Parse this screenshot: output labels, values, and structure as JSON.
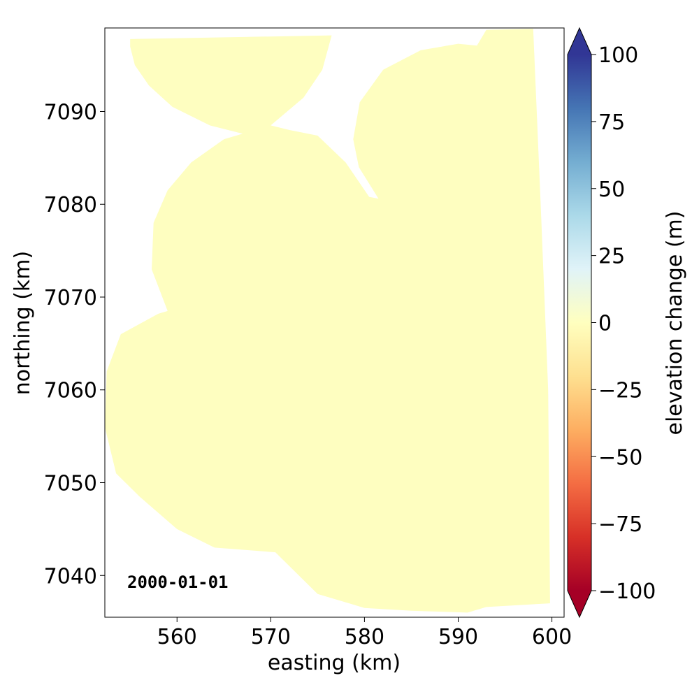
{
  "chart_data": {
    "type": "heatmap",
    "xlabel": "easting (km)",
    "ylabel": "northing (km)",
    "xlim": [
      552.3,
      601.3
    ],
    "ylim": [
      7035.5,
      7099.0
    ],
    "xticks": [
      560,
      570,
      580,
      590,
      600
    ],
    "yticks": [
      7040,
      7050,
      7060,
      7070,
      7080,
      7090
    ],
    "date_label": "2000-01-01",
    "field_value": 0,
    "field_color": "#fefec0",
    "colorbar": {
      "label": "elevation change (m)",
      "range": [
        -100,
        100
      ],
      "ticks": [
        -100,
        -75,
        -50,
        -25,
        0,
        25,
        50,
        75,
        100
      ],
      "tick_labels": [
        "−100",
        "−75",
        "−50",
        "−25",
        "0",
        "25",
        "50",
        "75",
        "100"
      ],
      "colormap": "RdYlBu",
      "extend": "both",
      "stops": [
        "#a50026",
        "#d73027",
        "#f46d43",
        "#fdae61",
        "#fee090",
        "#ffffbf",
        "#e0f3f8",
        "#abd9e9",
        "#74add1",
        "#4575b4",
        "#313695"
      ]
    },
    "coverage_outline": [
      [
        555.0,
        7097.8
      ],
      [
        576.5,
        7098.2
      ],
      [
        575.5,
        7094.5
      ],
      [
        573.5,
        7091.5
      ],
      [
        570.0,
        7088.5
      ],
      [
        572.0,
        7088.0
      ],
      [
        575.0,
        7087.4
      ],
      [
        578.0,
        7084.5
      ],
      [
        580.5,
        7080.8
      ],
      [
        581.5,
        7080.6
      ],
      [
        579.4,
        7084.0
      ],
      [
        578.8,
        7087.0
      ],
      [
        579.5,
        7091.0
      ],
      [
        582.0,
        7094.5
      ],
      [
        586.0,
        7096.6
      ],
      [
        590.0,
        7097.3
      ],
      [
        592.0,
        7097.1
      ],
      [
        593.0,
        7098.8
      ],
      [
        598.0,
        7098.9
      ],
      [
        598.8,
        7080.0
      ],
      [
        599.6,
        7060.0
      ],
      [
        599.8,
        7037.0
      ],
      [
        593.0,
        7036.6
      ],
      [
        591.0,
        7036.0
      ],
      [
        585.0,
        7036.2
      ],
      [
        580.0,
        7036.5
      ],
      [
        575.0,
        7038.0
      ],
      [
        572.0,
        7041.0
      ],
      [
        570.5,
        7042.5
      ],
      [
        564.0,
        7043.0
      ],
      [
        560.0,
        7045.0
      ],
      [
        556.0,
        7048.5
      ],
      [
        553.5,
        7051.0
      ],
      [
        552.3,
        7056.0
      ],
      [
        552.5,
        7062.0
      ],
      [
        554.0,
        7066.0
      ],
      [
        558.0,
        7068.2
      ],
      [
        559.0,
        7068.5
      ],
      [
        557.3,
        7073.0
      ],
      [
        557.5,
        7078.0
      ],
      [
        559.0,
        7081.5
      ],
      [
        561.5,
        7084.5
      ],
      [
        565.0,
        7087.0
      ],
      [
        567.0,
        7087.6
      ],
      [
        563.5,
        7088.5
      ],
      [
        559.5,
        7090.5
      ],
      [
        557.0,
        7092.8
      ],
      [
        555.5,
        7095.0
      ],
      [
        555.0,
        7097.0
      ]
    ]
  }
}
